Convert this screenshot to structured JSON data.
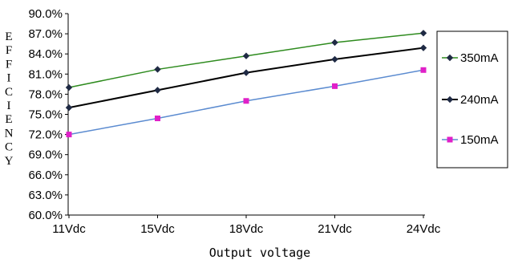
{
  "chart_data": {
    "type": "line",
    "title": "",
    "xlabel": "Output voltage",
    "ylabel": "EFFICIENCY",
    "categories": [
      "11Vdc",
      "15Vdc",
      "18Vdc",
      "21Vdc",
      "24Vdc"
    ],
    "y_ticks": [
      "60.0%",
      "63.0%",
      "66.0%",
      "69.0%",
      "72.0%",
      "75.0%",
      "78.0%",
      "81.0%",
      "84.0%",
      "87.0%",
      "90.0%"
    ],
    "ylim": [
      60,
      90
    ],
    "grid": false,
    "legend_position": "right",
    "series": [
      {
        "name": "350mA",
        "values": [
          79.0,
          81.7,
          83.7,
          85.7,
          87.1
        ],
        "color": "#2e8b1e",
        "marker": "diamond",
        "marker_color": "#1f2a44"
      },
      {
        "name": "240mA",
        "values": [
          76.0,
          78.6,
          81.2,
          83.2,
          84.9
        ],
        "color": "#000000",
        "marker": "diamond",
        "marker_color": "#1f2a44"
      },
      {
        "name": "150mA",
        "values": [
          72.0,
          74.4,
          77.0,
          79.2,
          81.6
        ],
        "color": "#5b8bd0",
        "marker": "square",
        "marker_color": "#e020c8"
      }
    ]
  }
}
